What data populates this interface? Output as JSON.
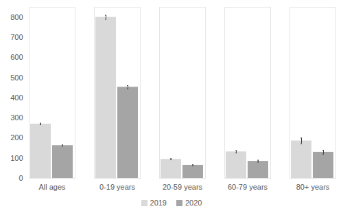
{
  "chart_data": {
    "type": "bar",
    "categories": [
      "All ages",
      "0-19 years",
      "20-59 years",
      "60-79 years",
      "80+ years"
    ],
    "series": [
      {
        "name": "2019",
        "color": "#d9d9d9",
        "values": [
          270,
          800,
          95,
          132,
          186
        ],
        "errors": [
          4,
          10,
          3,
          6,
          14
        ]
      },
      {
        "name": "2020",
        "color": "#a5a5a5",
        "values": [
          163,
          453,
          65,
          85,
          130
        ],
        "errors": [
          3,
          8,
          3,
          5,
          10
        ]
      }
    ],
    "ylim": [
      0,
      850
    ],
    "yticks": [
      0,
      100,
      200,
      300,
      400,
      500,
      600,
      700,
      800
    ],
    "grid": false,
    "legend": "bottom"
  }
}
